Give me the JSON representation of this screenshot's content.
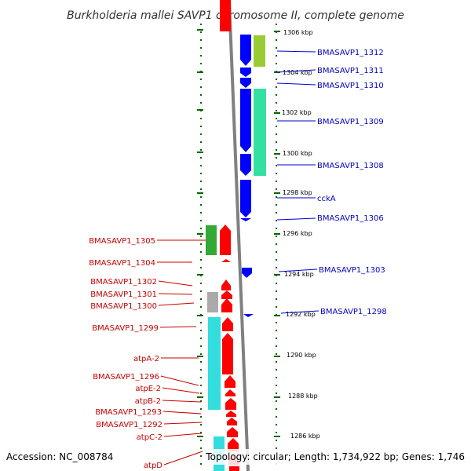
{
  "title": "Burkholderia mallei SAVP1 chromosome II, complete genome",
  "footer": {
    "accession": "Accession: NC_008784",
    "stats": "Topology: circular; Length: 1,734,922 bp; Genes: 1,746"
  },
  "ticks": [
    {
      "id": "1306",
      "label": "1306 kbp"
    },
    {
      "id": "1304",
      "label": "1304 kbp"
    },
    {
      "id": "1302",
      "label": "1302 kbp"
    },
    {
      "id": "1300",
      "label": "1300 kbp"
    },
    {
      "id": "1298",
      "label": "1298 kbp"
    },
    {
      "id": "1296",
      "label": "1296 kbp"
    },
    {
      "id": "1294",
      "label": "1294 kbp"
    },
    {
      "id": "1292",
      "label": "1292 kbp"
    },
    {
      "id": "1290",
      "label": "1290 kbp"
    },
    {
      "id": "1288",
      "label": "1288 kbp"
    },
    {
      "id": "1286",
      "label": "1286 kbp"
    }
  ],
  "forward_genes": [
    {
      "id": "1312",
      "label": "BMASAVP1_1312"
    },
    {
      "id": "1311",
      "label": "BMASAVP1_1311"
    },
    {
      "id": "1310",
      "label": "BMASAVP1_1310"
    },
    {
      "id": "1309",
      "label": "BMASAVP1_1309"
    },
    {
      "id": "1308",
      "label": "BMASAVP1_1308"
    },
    {
      "id": "ccka",
      "label": "cckA"
    },
    {
      "id": "1306",
      "label": "BMASAVP1_1306"
    },
    {
      "id": "1303",
      "label": "BMASAVP1_1303"
    },
    {
      "id": "1298",
      "label": "BMASAVP1_1298"
    }
  ],
  "reverse_genes": [
    {
      "id": "1305",
      "label": "BMASAVP1_1305"
    },
    {
      "id": "1304",
      "label": "BMASAVP1_1304"
    },
    {
      "id": "1302",
      "label": "BMASAVP1_1302"
    },
    {
      "id": "1301",
      "label": "BMASAVP1_1301"
    },
    {
      "id": "1300",
      "label": "BMASAVP1_1300"
    },
    {
      "id": "1299",
      "label": "BMASAVP1_1299"
    },
    {
      "id": "atpa2",
      "label": "atpA-2"
    },
    {
      "id": "1296",
      "label": "BMASAVP1_1296"
    },
    {
      "id": "atpe2",
      "label": "atpE-2"
    },
    {
      "id": "atpb2",
      "label": "atpB-2"
    },
    {
      "id": "1293",
      "label": "BMASAVP1_1293"
    },
    {
      "id": "1292",
      "label": "BMASAVP1_1292"
    },
    {
      "id": "atpc2",
      "label": "atpC-2"
    },
    {
      "id": "atpd",
      "label": "atpD"
    }
  ],
  "colors": {
    "forward_gene": "#0000ff",
    "reverse_gene": "#ff0000",
    "forward_label": "#0000cc",
    "reverse_label": "#cc0000",
    "backbone": "#808080",
    "tick": "#006600",
    "cog_green_light": "#99cc33",
    "cog_teal": "#33e0a0",
    "cog_green": "#33aa33",
    "cog_gray": "#aaaaaa",
    "cog_cyan": "#33dddd"
  }
}
